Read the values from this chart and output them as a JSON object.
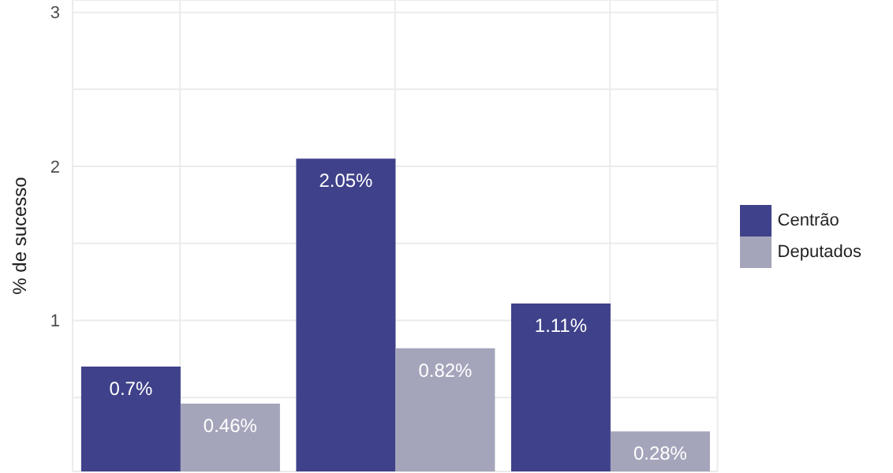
{
  "chart_data": {
    "type": "bar",
    "ylabel": "% de sucesso",
    "categories": [
      null,
      null,
      null
    ],
    "series": [
      {
        "name": "Centrão",
        "color": "#3f418a",
        "values": [
          0.7,
          2.05,
          1.11
        ],
        "value_labels": [
          "0.7%",
          "2.05%",
          "1.11%"
        ]
      },
      {
        "name": "Deputados",
        "color": "#a4a5bb",
        "values": [
          0.46,
          0.82,
          0.28
        ],
        "value_labels": [
          "0.46%",
          "0.82%",
          "0.28%"
        ]
      }
    ],
    "ylim": [
      0.02,
      3.08
    ],
    "yticks": [
      {
        "value": 0.5,
        "label": null
      },
      1,
      {
        "value": 1.5,
        "label": null
      },
      2,
      {
        "value": 2.5,
        "label": null
      },
      3
    ],
    "grid": true,
    "legend": "right"
  }
}
